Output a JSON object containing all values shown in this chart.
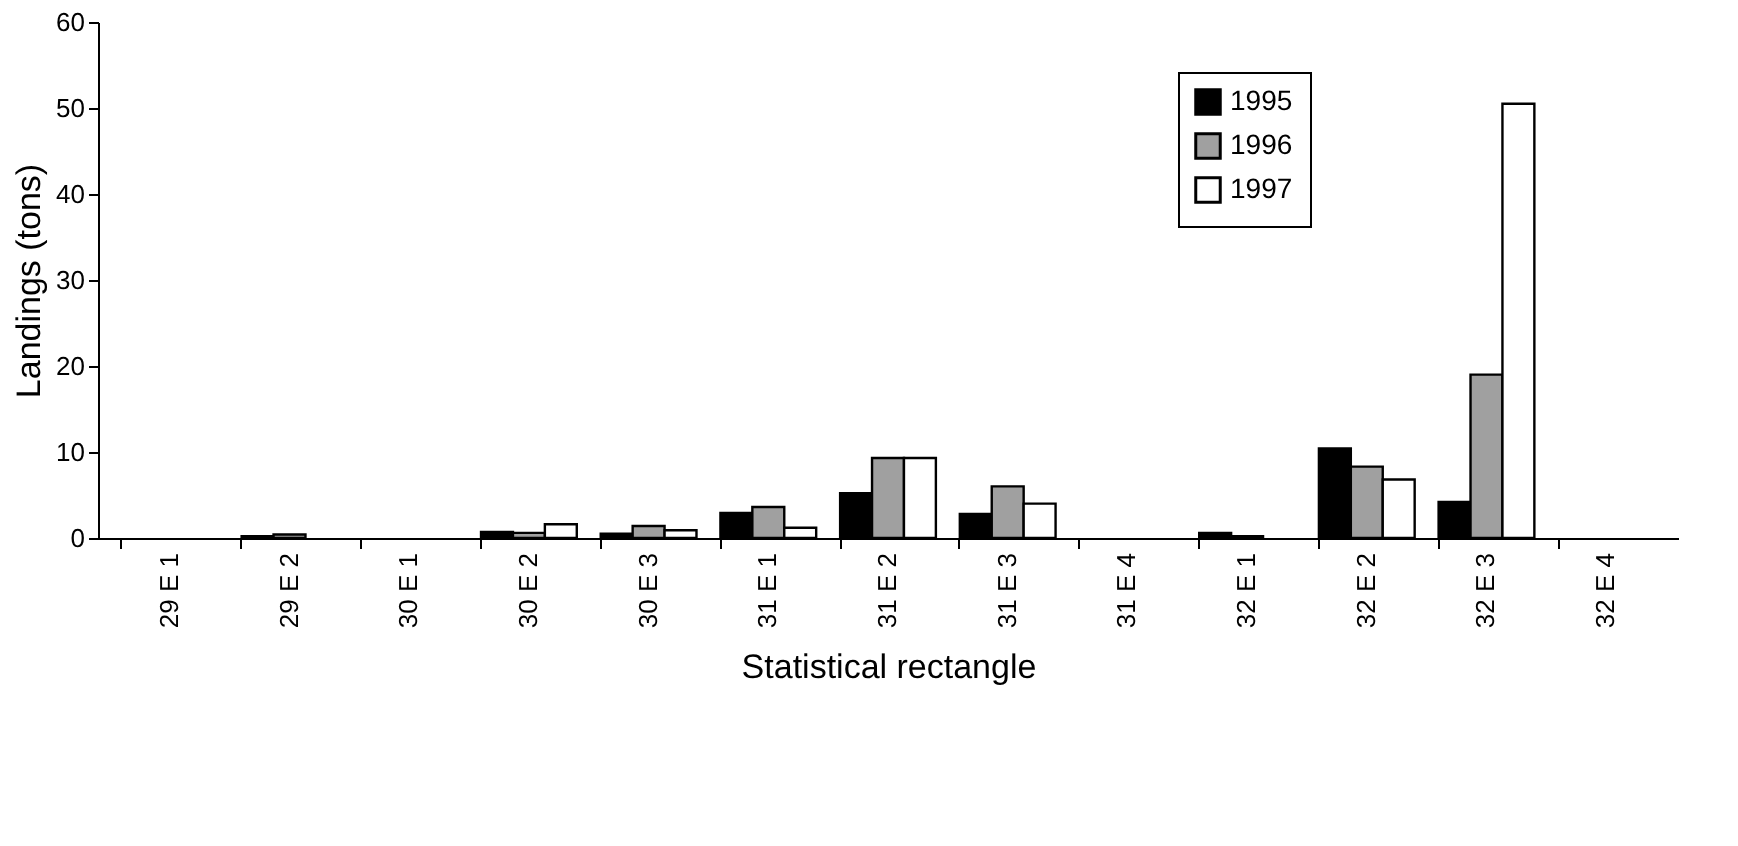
{
  "chart_data": {
    "type": "bar",
    "xlabel": "Statistical rectangle",
    "ylabel": "Landings (tons)",
    "categories": [
      "29 E 1",
      "29 E 2",
      "30 E 1",
      "30 E 2",
      "30 E 3",
      "31 E 1",
      "31 E 2",
      "31 E 3",
      "31 E 4",
      "32 E 1",
      "32 E 2",
      "32 E 3",
      "32 E 4"
    ],
    "series": [
      {
        "name": "1995",
        "color": "#000000",
        "values": [
          0,
          0.2,
          0,
          0.7,
          0.5,
          2.9,
          5.2,
          2.8,
          0,
          0.6,
          10.4,
          4.2,
          0
        ]
      },
      {
        "name": "1996",
        "color": "#a0a0a0",
        "values": [
          0,
          0.4,
          0,
          0.6,
          1.4,
          3.6,
          9.3,
          6.0,
          0,
          0.2,
          8.3,
          19,
          0
        ]
      },
      {
        "name": "1997",
        "color": "#ffffff",
        "values": [
          0,
          0,
          0,
          1.6,
          0.9,
          1.2,
          9.3,
          4.0,
          0,
          0,
          6.8,
          50.5,
          0
        ]
      }
    ],
    "ylim": [
      0,
      60
    ],
    "yticks": [
      0,
      10,
      20,
      30,
      40,
      50,
      60
    ],
    "grid": false,
    "legend": "top right"
  }
}
